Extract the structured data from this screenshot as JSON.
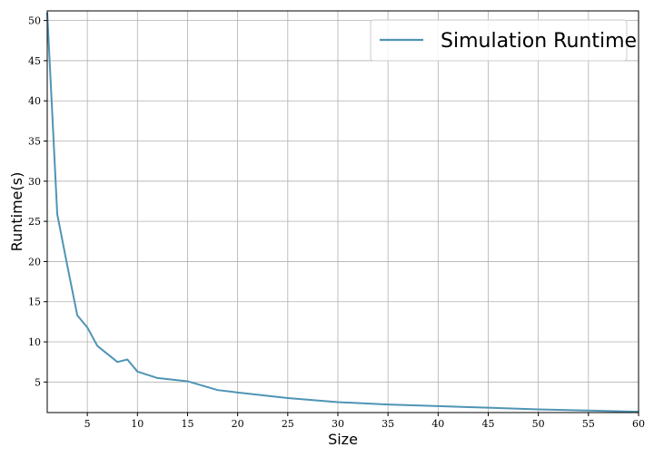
{
  "chart_data": {
    "type": "line",
    "title": "",
    "xlabel": "Size",
    "ylabel": "Runtime(s)",
    "xlim": [
      1,
      60
    ],
    "ylim": [
      1.2,
      51.2
    ],
    "xticks": [
      5,
      10,
      15,
      20,
      25,
      30,
      35,
      40,
      45,
      50,
      55,
      60
    ],
    "yticks": [
      5,
      10,
      15,
      20,
      25,
      30,
      35,
      40,
      45,
      50
    ],
    "grid": true,
    "legend_position": "top-right",
    "series": [
      {
        "name": "Simulation Runtime",
        "color": "#4f94b5",
        "x": [
          1,
          2,
          3,
          4,
          5,
          6,
          7,
          8,
          9,
          10,
          12,
          15,
          18,
          20,
          25,
          30,
          35,
          40,
          45,
          50,
          55,
          60
        ],
        "y": [
          51.0,
          25.9,
          19.5,
          13.3,
          11.8,
          9.5,
          8.5,
          7.5,
          7.8,
          6.3,
          5.5,
          5.1,
          4.0,
          3.7,
          3.0,
          2.5,
          2.2,
          2.0,
          1.8,
          1.6,
          1.45,
          1.3
        ]
      }
    ]
  }
}
